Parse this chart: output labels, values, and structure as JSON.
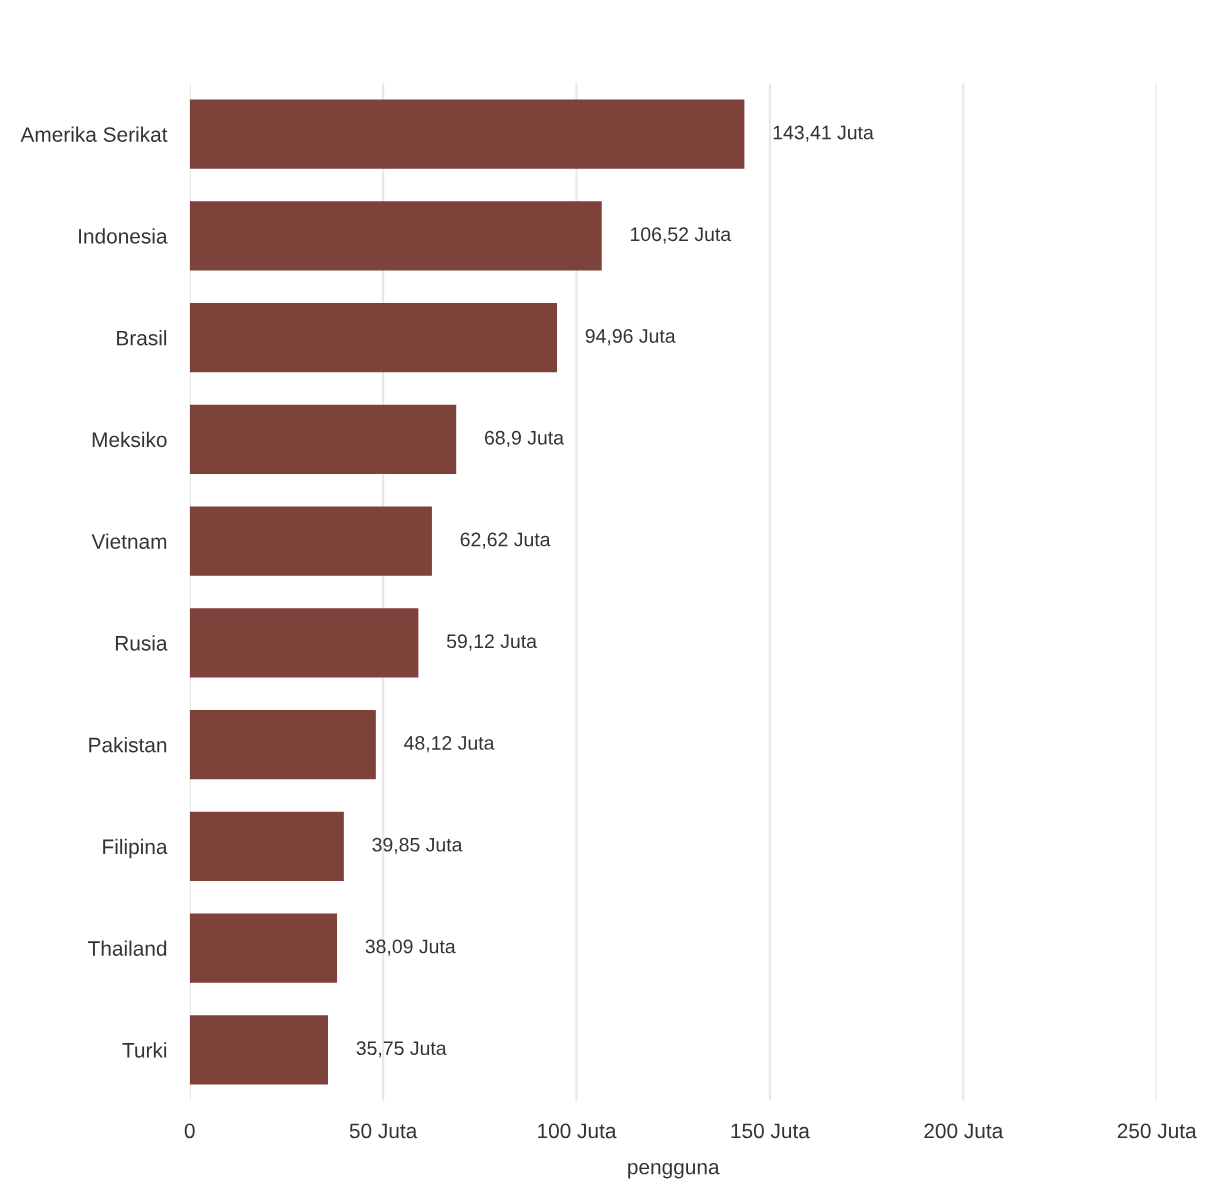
{
  "chart_data": {
    "type": "bar",
    "orientation": "horizontal",
    "xlabel": "pengguna",
    "categories": [
      "Amerika Serikat",
      "Indonesia",
      "Brasil",
      "Meksiko",
      "Vietnam",
      "Rusia",
      "Pakistan",
      "Filipina",
      "Thailand",
      "Turki"
    ],
    "values": [
      143.41,
      106.52,
      94.96,
      68.9,
      62.62,
      59.12,
      48.12,
      39.85,
      38.09,
      35.75
    ],
    "value_labels": [
      "143,41 Juta",
      "106,52 Juta",
      "94,96 Juta",
      "68,9 Juta",
      "62,62 Juta",
      "59,12 Juta",
      "48,12 Juta",
      "39,85 Juta",
      "38,09 Juta",
      "35,75 Juta"
    ],
    "color": "#7d4239",
    "xlim": [
      0,
      250
    ],
    "xticks": [
      0,
      {
        "value": 50,
        "label": "50 Juta"
      },
      {
        "value": 100,
        "label": "100 Juta"
      },
      {
        "value": 150,
        "label": "150 Juta"
      },
      {
        "value": 200,
        "label": "200 Juta"
      },
      {
        "value": 250,
        "label": "250 Juta"
      }
    ],
    "grid": "x",
    "legend": false
  }
}
